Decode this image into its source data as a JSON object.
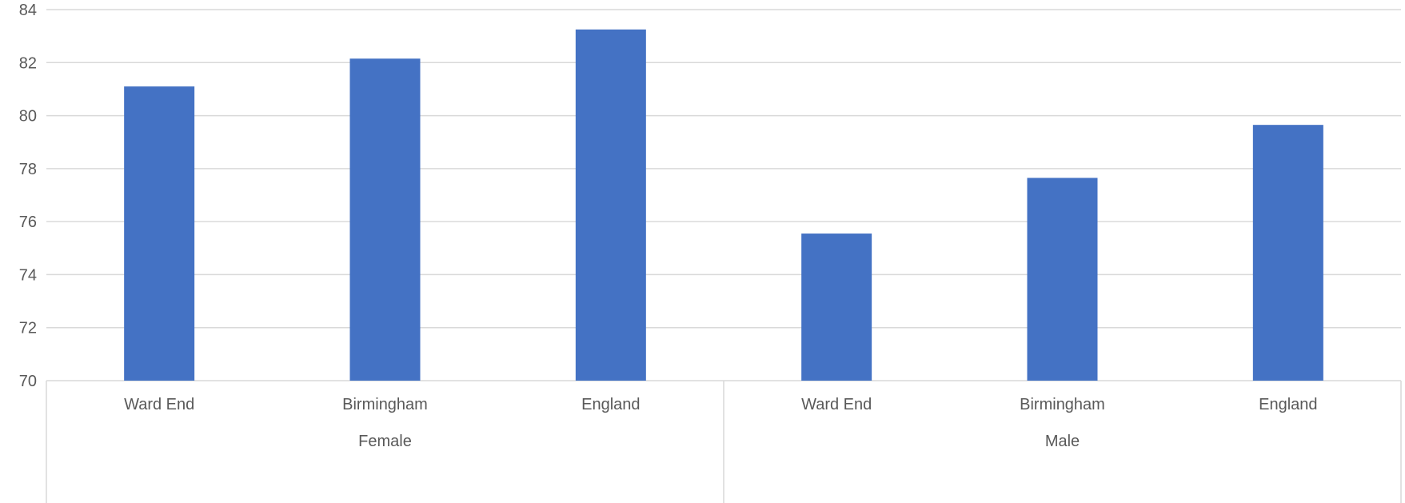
{
  "chart_data": {
    "type": "bar",
    "title": "",
    "xlabel": "",
    "ylabel": "",
    "ylim": [
      70,
      84
    ],
    "yticks": [
      70,
      72,
      74,
      76,
      78,
      80,
      82,
      84
    ],
    "grid": true,
    "legend": "none",
    "bar_color": "#4472C4",
    "groups": [
      {
        "label": "Female",
        "categories": [
          "Ward End",
          "Birmingham",
          "England"
        ],
        "values": [
          81.1,
          82.15,
          83.25
        ]
      },
      {
        "label": "Male",
        "categories": [
          "Ward End",
          "Birmingham",
          "England"
        ],
        "values": [
          75.55,
          77.65,
          79.65
        ]
      }
    ]
  }
}
